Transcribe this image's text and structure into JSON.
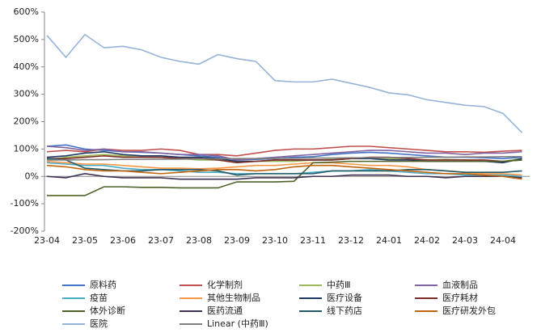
{
  "chart_data": {
    "type": "line",
    "categories": [
      "23-04",
      null,
      "23-05",
      null,
      "23-06",
      null,
      "23-07",
      null,
      "23-08",
      null,
      "23-09",
      null,
      "23-10",
      null,
      "23-11",
      null,
      "23-12",
      null,
      "24-01",
      null,
      "24-02",
      null,
      "24-03",
      null,
      "24-04",
      null
    ],
    "ylim": [
      -200,
      600
    ],
    "yticks": [
      {
        "value": -200,
        "label": "-200%"
      },
      {
        "value": -100,
        "label": "-100%"
      },
      {
        "value": 0,
        "label": "0%"
      },
      {
        "value": 100,
        "label": "100%"
      },
      {
        "value": 200,
        "label": "200%"
      },
      {
        "value": 300,
        "label": "300%"
      },
      {
        "value": 400,
        "label": "400%"
      },
      {
        "value": 500,
        "label": "500%"
      },
      {
        "value": 600,
        "label": "600%"
      }
    ],
    "series": [
      {
        "name": "原料药",
        "color": "#4472c4",
        "values": [
          110,
          115,
          100,
          95,
          90,
          88,
          85,
          80,
          75,
          70,
          60,
          62,
          65,
          70,
          72,
          80,
          85,
          88,
          85,
          80,
          75,
          70,
          70,
          68,
          65,
          70
        ]
      },
      {
        "name": "化学制剂",
        "color": "#c0504d",
        "values": [
          90,
          95,
          90,
          100,
          95,
          95,
          100,
          95,
          80,
          80,
          75,
          85,
          95,
          100,
          100,
          105,
          110,
          110,
          105,
          100,
          95,
          90,
          90,
          88,
          92,
          95
        ]
      },
      {
        "name": "中药Ⅲ",
        "color": "#9bbb59",
        "values": [
          60,
          70,
          75,
          80,
          75,
          70,
          70,
          65,
          60,
          60,
          55,
          55,
          55,
          55,
          60,
          62,
          65,
          65,
          65,
          60,
          60,
          62,
          60,
          55,
          55,
          65
        ]
      },
      {
        "name": "血液制品",
        "color": "#8064a2",
        "values": [
          110,
          105,
          95,
          100,
          90,
          90,
          85,
          80,
          80,
          75,
          60,
          65,
          70,
          75,
          80,
          85,
          90,
          95,
          95,
          90,
          85,
          85,
          80,
          85,
          85,
          90
        ]
      },
      {
        "name": "疫苗",
        "color": "#4bacc6",
        "values": [
          50,
          45,
          40,
          40,
          30,
          25,
          25,
          20,
          15,
          15,
          10,
          10,
          10,
          10,
          15,
          20,
          20,
          25,
          20,
          15,
          10,
          10,
          5,
          5,
          5,
          0
        ]
      },
      {
        "name": "其他生物制品",
        "color": "#f79646",
        "values": [
          55,
          50,
          45,
          45,
          40,
          35,
          30,
          30,
          28,
          30,
          35,
          40,
          40,
          45,
          50,
          50,
          45,
          40,
          40,
          35,
          25,
          20,
          15,
          10,
          10,
          5
        ]
      },
      {
        "name": "医疗设备",
        "color": "#1f3864",
        "values": [
          70,
          75,
          85,
          90,
          80,
          75,
          75,
          70,
          70,
          65,
          55,
          55,
          60,
          60,
          60,
          60,
          65,
          65,
          60,
          60,
          55,
          55,
          55,
          55,
          50,
          65
        ]
      },
      {
        "name": "医疗耗材",
        "color": "#7f2b27",
        "values": [
          65,
          65,
          70,
          75,
          70,
          70,
          70,
          65,
          65,
          60,
          50,
          55,
          60,
          60,
          60,
          60,
          65,
          70,
          70,
          65,
          60,
          60,
          60,
          60,
          55,
          60
        ]
      },
      {
        "name": "体外诊断",
        "color": "#4f6228",
        "values": [
          -70,
          -70,
          -70,
          -38,
          -38,
          -40,
          -40,
          -42,
          -42,
          -42,
          -20,
          -20,
          -20,
          -18,
          50,
          52,
          55,
          55,
          55,
          55,
          55,
          55,
          55,
          55,
          55,
          60
        ]
      },
      {
        "name": "医药流通",
        "color": "#3f3151",
        "values": [
          0,
          -5,
          10,
          0,
          -5,
          -5,
          -5,
          -10,
          -10,
          -10,
          -10,
          -5,
          -5,
          -5,
          0,
          0,
          5,
          5,
          5,
          0,
          0,
          -5,
          0,
          0,
          0,
          -5
        ]
      },
      {
        "name": "线下药店",
        "color": "#215967",
        "values": [
          65,
          60,
          30,
          25,
          20,
          20,
          25,
          25,
          25,
          20,
          5,
          10,
          10,
          10,
          10,
          20,
          20,
          20,
          20,
          25,
          25,
          20,
          15,
          15,
          15,
          20
        ]
      },
      {
        "name": "医疗研发外包",
        "color": "#c0650d",
        "values": [
          40,
          35,
          25,
          20,
          20,
          15,
          10,
          15,
          20,
          25,
          25,
          20,
          25,
          35,
          40,
          40,
          35,
          30,
          25,
          20,
          15,
          10,
          10,
          5,
          0,
          -10
        ]
      },
      {
        "name": "医院",
        "color": "#95b3d7",
        "values": [
          515,
          435,
          518,
          470,
          475,
          462,
          435,
          420,
          410,
          445,
          430,
          420,
          350,
          345,
          345,
          355,
          340,
          325,
          305,
          298,
          280,
          270,
          260,
          255,
          230,
          160
        ]
      },
      {
        "name": "Linear (中药Ⅲ)",
        "color": "#7f7f7f",
        "values": [
          60,
          60,
          61,
          61,
          62,
          62,
          63,
          63,
          64,
          64,
          65,
          65,
          66,
          66,
          67,
          67,
          68,
          68,
          69,
          69,
          70,
          70,
          71,
          71,
          72,
          72
        ]
      }
    ]
  }
}
